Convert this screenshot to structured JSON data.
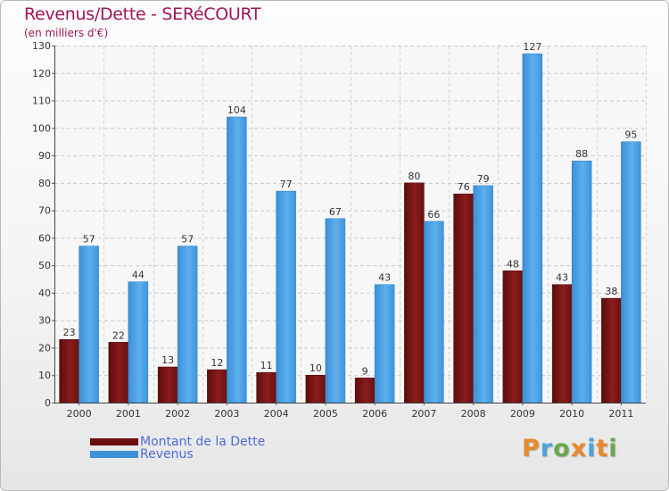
{
  "title": "Revenus/Dette - SERéCOURT",
  "subtitle": "(en milliers d'€)",
  "chart_data": {
    "type": "bar",
    "title": "Revenus/Dette - SERéCOURT",
    "ylabel": "(en milliers d'€)",
    "xlabel": "",
    "ylim": [
      0,
      130
    ],
    "yticks": [
      0,
      10,
      20,
      30,
      40,
      50,
      60,
      70,
      80,
      90,
      100,
      110,
      120,
      130
    ],
    "grid": true,
    "legend_position": "bottom-left",
    "categories": [
      "2000",
      "2001",
      "2002",
      "2003",
      "2004",
      "2005",
      "2006",
      "2007",
      "2008",
      "2009",
      "2010",
      "2011"
    ],
    "series": [
      {
        "name": "Montant de la Dette",
        "color": "#7a1515",
        "values": [
          23,
          22,
          13,
          12,
          11,
          10,
          9,
          80,
          76,
          48,
          43,
          38
        ]
      },
      {
        "name": "Revenus",
        "color": "#4aa3e8",
        "values": [
          57,
          44,
          57,
          104,
          77,
          67,
          43,
          66,
          79,
          127,
          88,
          95
        ]
      }
    ]
  },
  "legend": {
    "dette_label": "Montant de la Dette",
    "revenus_label": "Revenus"
  },
  "logo": {
    "letters": [
      "P",
      "r",
      "o",
      "x",
      "i",
      "t",
      "i"
    ],
    "colors": [
      "#e8892a",
      "#4ba3de",
      "#6aa84f",
      "#e8892a",
      "#4ba3de",
      "#e8892a",
      "#6aa84f"
    ]
  }
}
